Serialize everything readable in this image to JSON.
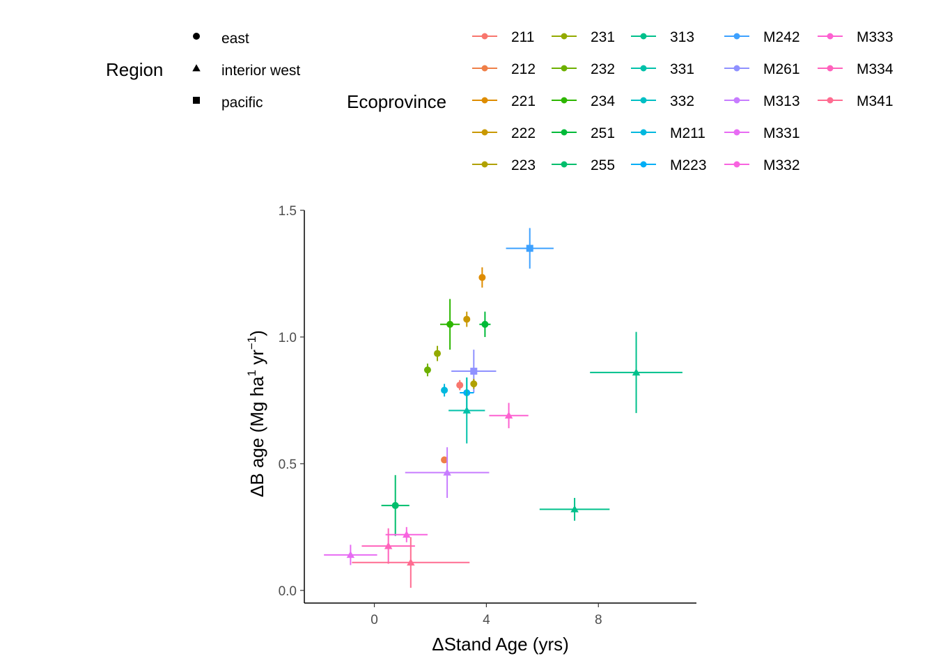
{
  "chart_data": {
    "type": "scatter",
    "title": "",
    "xlabel": "ΔStand Age (yrs)",
    "ylabel_parts": {
      "main": "ΔB age (Mg ha",
      "sup1": "1",
      "mid": " yr",
      "sup2": "−1",
      "end": ")"
    },
    "xlim": [
      -2.5,
      11.5
    ],
    "ylim": [
      -0.05,
      1.5
    ],
    "x_ticks": [
      0,
      4,
      8
    ],
    "y_ticks": [
      0.0,
      0.5,
      1.0,
      1.5
    ],
    "x_tick_labels": [
      "0",
      "4",
      "8"
    ],
    "y_tick_labels": [
      "0.0",
      "0.5",
      "1.0",
      "1.5"
    ],
    "grid": false,
    "legend_position": "top",
    "legend_shape": {
      "title": "Region",
      "entries": [
        {
          "label": "east",
          "shape": "circle"
        },
        {
          "label": "interior west",
          "shape": "triangle"
        },
        {
          "label": "pacific",
          "shape": "square"
        }
      ]
    },
    "legend_color": {
      "title": "Ecoprovince",
      "entries": [
        {
          "label": "211",
          "color": "#F8766D"
        },
        {
          "label": "212",
          "color": "#EF7F48"
        },
        {
          "label": "221",
          "color": "#DE8C00"
        },
        {
          "label": "222",
          "color": "#C99800"
        },
        {
          "label": "223",
          "color": "#B0A100"
        },
        {
          "label": "231",
          "color": "#93AA00"
        },
        {
          "label": "232",
          "color": "#6DB000"
        },
        {
          "label": "234",
          "color": "#2DB600"
        },
        {
          "label": "251",
          "color": "#00BA38"
        },
        {
          "label": "255",
          "color": "#00BE6C"
        },
        {
          "label": "313",
          "color": "#00C08B"
        },
        {
          "label": "331",
          "color": "#00C1A9"
        },
        {
          "label": "332",
          "color": "#00BFC4"
        },
        {
          "label": "M211",
          "color": "#00B8DE"
        },
        {
          "label": "M223",
          "color": "#00AEF6"
        },
        {
          "label": "M242",
          "color": "#3DA1FF"
        },
        {
          "label": "M261",
          "color": "#8F91FF"
        },
        {
          "label": "M313",
          "color": "#C77CFF"
        },
        {
          "label": "M331",
          "color": "#E76BF3"
        },
        {
          "label": "M332",
          "color": "#F863DF"
        },
        {
          "label": "M333",
          "color": "#FD61D1"
        },
        {
          "label": "M334",
          "color": "#FF62BC"
        },
        {
          "label": "M341",
          "color": "#FF6C91"
        }
      ]
    },
    "points": [
      {
        "eco": "M242",
        "region": "pacific",
        "x": 5.55,
        "y": 1.35,
        "xerr": 0.85,
        "yerr": 0.08
      },
      {
        "eco": "221",
        "region": "east",
        "x": 3.85,
        "y": 1.235,
        "xerr": 0,
        "yerr": 0.04
      },
      {
        "eco": "222",
        "region": "east",
        "x": 3.3,
        "y": 1.07,
        "xerr": 0,
        "yerr": 0.03
      },
      {
        "eco": "234",
        "region": "east",
        "x": 2.7,
        "y": 1.05,
        "xerr": 0.35,
        "yerr": 0.1
      },
      {
        "eco": "251",
        "region": "east",
        "x": 3.95,
        "y": 1.05,
        "xerr": 0.2,
        "yerr": 0.05
      },
      {
        "eco": "231",
        "region": "east",
        "x": 2.25,
        "y": 0.935,
        "xerr": 0,
        "yerr": 0.03
      },
      {
        "eco": "232",
        "region": "east",
        "x": 1.9,
        "y": 0.87,
        "xerr": 0,
        "yerr": 0.025
      },
      {
        "eco": "M261",
        "region": "pacific",
        "x": 3.55,
        "y": 0.865,
        "xerr": 0.8,
        "yerr": 0.085
      },
      {
        "eco": "313",
        "region": "interior west",
        "x": 9.35,
        "y": 0.86,
        "xerr": 1.65,
        "yerr": 0.16
      },
      {
        "eco": "211",
        "region": "east",
        "x": 3.05,
        "y": 0.81,
        "xerr": 0,
        "yerr": 0.02
      },
      {
        "eco": "223",
        "region": "east",
        "x": 3.55,
        "y": 0.815,
        "xerr": 0,
        "yerr": 0.02
      },
      {
        "eco": "M211",
        "region": "east",
        "x": 2.5,
        "y": 0.79,
        "xerr": 0,
        "yerr": 0.025
      },
      {
        "eco": "M223",
        "region": "east",
        "x": 3.3,
        "y": 0.78,
        "xerr": 0.25,
        "yerr": 0.06
      },
      {
        "eco": "331",
        "region": "interior west",
        "x": 3.3,
        "y": 0.71,
        "xerr": 0.65,
        "yerr": 0.13
      },
      {
        "eco": "M333",
        "region": "interior west",
        "x": 4.8,
        "y": 0.69,
        "xerr": 0.7,
        "yerr": 0.05
      },
      {
        "eco": "212",
        "region": "east",
        "x": 2.5,
        "y": 0.515,
        "xerr": 0,
        "yerr": 0
      },
      {
        "eco": "M313",
        "region": "interior west",
        "x": 2.6,
        "y": 0.465,
        "xerr": 1.5,
        "yerr": 0.1
      },
      {
        "eco": "255",
        "region": "east",
        "x": 0.75,
        "y": 0.335,
        "xerr": 0.5,
        "yerr": 0.12
      },
      {
        "eco": "313",
        "region": "interior west",
        "x": 7.15,
        "y": 0.32,
        "xerr": 1.25,
        "yerr": 0.045
      },
      {
        "eco": "M332",
        "region": "interior west",
        "x": 1.15,
        "y": 0.22,
        "xerr": 0.75,
        "yerr": 0.03
      },
      {
        "eco": "M331",
        "region": "interior west",
        "x": -0.85,
        "y": 0.14,
        "xerr": 0.95,
        "yerr": 0.04
      },
      {
        "eco": "M334",
        "region": "interior west",
        "x": 0.5,
        "y": 0.175,
        "xerr": 0.95,
        "yerr": 0.07
      },
      {
        "eco": "M341",
        "region": "interior west",
        "x": 1.3,
        "y": 0.11,
        "xerr": 2.1,
        "yerr": 0.1
      }
    ]
  }
}
